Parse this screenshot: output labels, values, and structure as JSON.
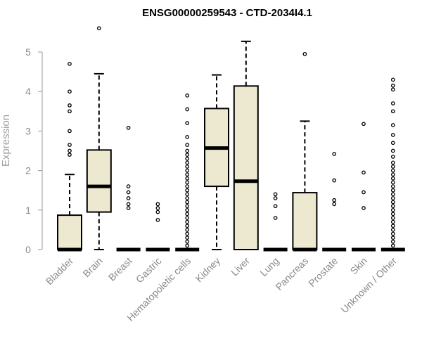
{
  "chart_data": {
    "type": "boxplot",
    "title": "ENSG00000259543 - CTD-2034I4.1",
    "xlabel": "",
    "ylabel": "Expression",
    "ylim": [
      0,
      5.6
    ],
    "yticks": [
      "0",
      "1",
      "2",
      "3",
      "4",
      "5"
    ],
    "grid": false,
    "box_color": "#ede8d0",
    "categories": [
      "Bladder",
      "Brain",
      "Breast",
      "Gastric",
      "Hematopoietic cells",
      "Kidney",
      "Liver",
      "Lung",
      "Pancreas",
      "Prostate",
      "Skin",
      "Unknown / Other"
    ],
    "boxes": [
      {
        "name": "Bladder",
        "min": 0,
        "q1": 0,
        "median": 0,
        "q3": 0.87,
        "max": 1.9,
        "outliers": [
          2.4,
          2.5,
          2.65,
          3.0,
          3.5,
          3.65,
          4.0,
          4.7
        ]
      },
      {
        "name": "Brain",
        "min": 0,
        "q1": 0.95,
        "median": 1.6,
        "q3": 2.52,
        "max": 4.45,
        "outliers": [
          5.6
        ]
      },
      {
        "name": "Breast",
        "min": 0,
        "q1": 0,
        "median": 0,
        "q3": 0,
        "max": 0,
        "outliers": [
          1.05,
          1.15,
          1.3,
          1.45,
          1.6,
          3.08
        ]
      },
      {
        "name": "Gastric",
        "min": 0,
        "q1": 0,
        "median": 0,
        "q3": 0,
        "max": 0,
        "outliers": [
          0.75,
          0.95,
          1.05,
          1.15
        ]
      },
      {
        "name": "Hematopoietic cells",
        "min": 0,
        "q1": 0,
        "median": 0,
        "q3": 0,
        "max": 0,
        "outliers": [
          0.1,
          0.2,
          0.3,
          0.4,
          0.5,
          0.6,
          0.7,
          0.8,
          0.9,
          1.0,
          1.1,
          1.2,
          1.3,
          1.4,
          1.5,
          1.6,
          1.7,
          1.8,
          1.9,
          2.0,
          2.1,
          2.2,
          2.3,
          2.4,
          2.5,
          2.65,
          2.85,
          3.2,
          3.55,
          3.9
        ]
      },
      {
        "name": "Kidney",
        "min": 0,
        "q1": 1.6,
        "median": 2.57,
        "q3": 3.57,
        "max": 4.42,
        "outliers": []
      },
      {
        "name": "Liver",
        "min": 0,
        "q1": 0,
        "median": 1.73,
        "q3": 4.14,
        "max": 5.27,
        "outliers": []
      },
      {
        "name": "Lung",
        "min": 0,
        "q1": 0,
        "median": 0,
        "q3": 0,
        "max": 0,
        "outliers": [
          0.8,
          1.1,
          1.3,
          1.4
        ]
      },
      {
        "name": "Pancreas",
        "min": 0,
        "q1": 0,
        "median": 0,
        "q3": 1.44,
        "max": 3.25,
        "outliers": [
          4.95
        ]
      },
      {
        "name": "Prostate",
        "min": 0,
        "q1": 0,
        "median": 0,
        "q3": 0,
        "max": 0,
        "outliers": [
          1.15,
          1.25,
          1.75,
          2.42
        ]
      },
      {
        "name": "Skin",
        "min": 0,
        "q1": 0,
        "median": 0,
        "q3": 0,
        "max": 0,
        "outliers": [
          1.05,
          1.45,
          1.95,
          3.18
        ]
      },
      {
        "name": "Unknown / Other",
        "min": 0,
        "q1": 0,
        "median": 0,
        "q3": 0,
        "max": 0,
        "outliers": [
          0.1,
          0.2,
          0.3,
          0.4,
          0.5,
          0.6,
          0.7,
          0.8,
          0.9,
          1.0,
          1.1,
          1.2,
          1.3,
          1.4,
          1.5,
          1.6,
          1.7,
          1.8,
          1.9,
          2.0,
          2.1,
          2.2,
          2.35,
          2.5,
          2.7,
          2.9,
          3.15,
          3.5,
          3.7,
          4.05,
          4.15,
          4.3
        ]
      }
    ]
  }
}
